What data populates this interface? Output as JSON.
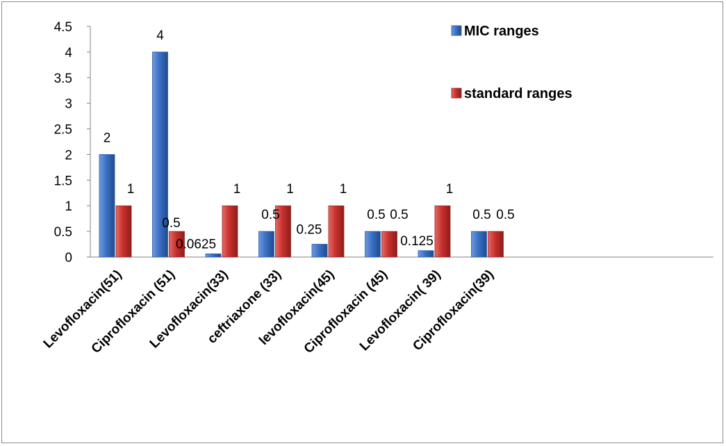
{
  "chart_data": {
    "type": "bar",
    "categories": [
      "Levofloxacin(51)",
      "Ciprofloxacin (51)",
      "Levofloxacin(33)",
      "ceftriaxone (33)",
      "levofloxacin(45)",
      "Ciprofloxacin (45)",
      "Levofloxacin( 39)",
      "Ciprofloxacin(39)"
    ],
    "series": [
      {
        "name": "MIC ranges",
        "values": [
          2,
          4,
          0.0625,
          0.5,
          0.25,
          0.5,
          0.125,
          0.5
        ],
        "labels": [
          "2",
          "4",
          "0.0625",
          "0.5",
          "0.25",
          "0.5",
          "0.125",
          "0.5"
        ],
        "color": "#3a70c4"
      },
      {
        "name": "standard ranges",
        "values": [
          1,
          0.5,
          1,
          1,
          1,
          0.5,
          1,
          0.5
        ],
        "labels": [
          "1",
          "0.5",
          "1",
          "1",
          "1",
          "0.5",
          "1",
          "0.5"
        ],
        "color": "#c8312e"
      }
    ],
    "ylim": [
      0,
      4.5
    ],
    "yticks": [
      "0",
      "0.5",
      "1",
      "1.5",
      "2",
      "2.5",
      "3",
      "3.5",
      "4",
      "4.5"
    ],
    "legend_position": "top-right",
    "grid": false
  }
}
